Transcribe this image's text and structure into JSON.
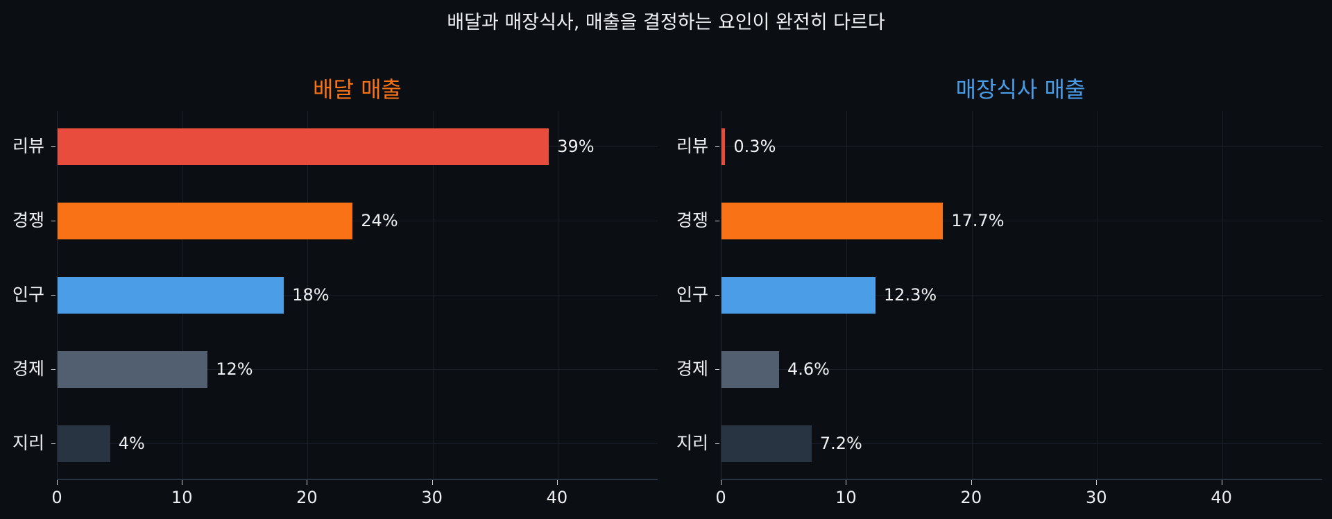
{
  "title": "배달과 매장식사, 매출을 결정하는 요인이 완전히 다르다",
  "colors": {
    "background": "#0b0e13",
    "review": "#e84c3d",
    "competition": "#f97316",
    "population": "#4b9de8",
    "economy": "#525f70",
    "geography": "#293443",
    "delivery_title": "#f97316",
    "dinein_title": "#4b9de8"
  },
  "chart_data": [
    {
      "type": "bar",
      "orientation": "horizontal",
      "title": "배달 매출",
      "categories": [
        "리뷰",
        "경쟁",
        "인구",
        "경제",
        "지리"
      ],
      "values": [
        39.3,
        23.6,
        18.1,
        12.0,
        4.2
      ],
      "value_labels": [
        "39%",
        "24%",
        "18%",
        "12%",
        "4%"
      ],
      "xlabel": "",
      "ylabel": "",
      "xlim": [
        0,
        48
      ],
      "xticks": [
        0,
        10,
        20,
        30,
        40
      ],
      "grid": true
    },
    {
      "type": "bar",
      "orientation": "horizontal",
      "title": "매장식사 매출",
      "categories": [
        "리뷰",
        "경쟁",
        "인구",
        "경제",
        "지리"
      ],
      "values": [
        0.3,
        17.7,
        12.3,
        4.6,
        7.2
      ],
      "value_labels": [
        "0.3%",
        "17.7%",
        "12.3%",
        "4.6%",
        "7.2%"
      ],
      "xlabel": "",
      "ylabel": "",
      "xlim": [
        0,
        48
      ],
      "xticks": [
        0,
        10,
        20,
        30,
        40
      ],
      "grid": true
    }
  ],
  "panels": [
    {
      "title": "배달 매출",
      "rows": [
        {
          "label": "리뷰",
          "value_label": "39%"
        },
        {
          "label": "경쟁",
          "value_label": "24%"
        },
        {
          "label": "인구",
          "value_label": "18%"
        },
        {
          "label": "경제",
          "value_label": "12%"
        },
        {
          "label": "지리",
          "value_label": "4%"
        }
      ],
      "xticks": [
        "0",
        "10",
        "20",
        "30",
        "40"
      ]
    },
    {
      "title": "매장식사 매출",
      "rows": [
        {
          "label": "리뷰",
          "value_label": "0.3%"
        },
        {
          "label": "경쟁",
          "value_label": "17.7%"
        },
        {
          "label": "인구",
          "value_label": "12.3%"
        },
        {
          "label": "경제",
          "value_label": "4.6%"
        },
        {
          "label": "지리",
          "value_label": "7.2%"
        }
      ],
      "xticks": [
        "0",
        "10",
        "20",
        "30",
        "40"
      ]
    }
  ]
}
